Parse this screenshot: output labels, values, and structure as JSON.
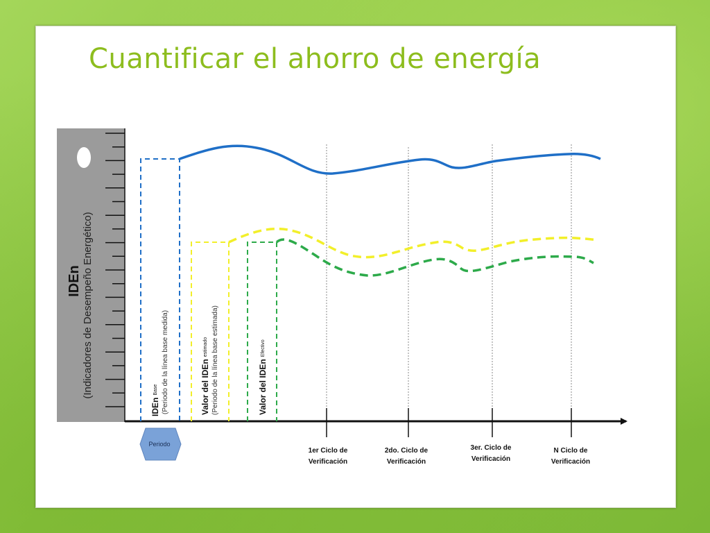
{
  "slide": {
    "title": "Cuantificar el ahorro de energía"
  },
  "diagram": {
    "y_axis_title": "IDEn",
    "y_axis_subtitle": "(Indicadores de Desempeño Energético)",
    "baseline_label": "IDEn",
    "baseline_subscript": "Base",
    "baseline_note": "(Periodo de la línea base medida)",
    "estimated_label": "Valor del IDEn",
    "estimated_subscript": "estimado",
    "estimated_note": "(Periodo de la línea base estimada)",
    "actual_label": "Valor del IDEn",
    "actual_subscript": "Efectivo",
    "period_label": "Periodo",
    "cycles": [
      {
        "line1": "1er Ciclo de",
        "line2": "Verificación"
      },
      {
        "line1": "2do. Ciclo de",
        "line2": "Verificación"
      },
      {
        "line1": "3er. Ciclo de",
        "line2": "Verificación"
      },
      {
        "line1": "N  Ciclo de",
        "line2": "Verificación"
      }
    ],
    "colors": {
      "baseline": "#1f6fc7",
      "estimated": "#f2ef2a",
      "actual": "#2daa4a",
      "axis_bar": "#9b9b9b",
      "title": "#8dbd1e",
      "period_arrow": "#7aa2d8"
    }
  }
}
